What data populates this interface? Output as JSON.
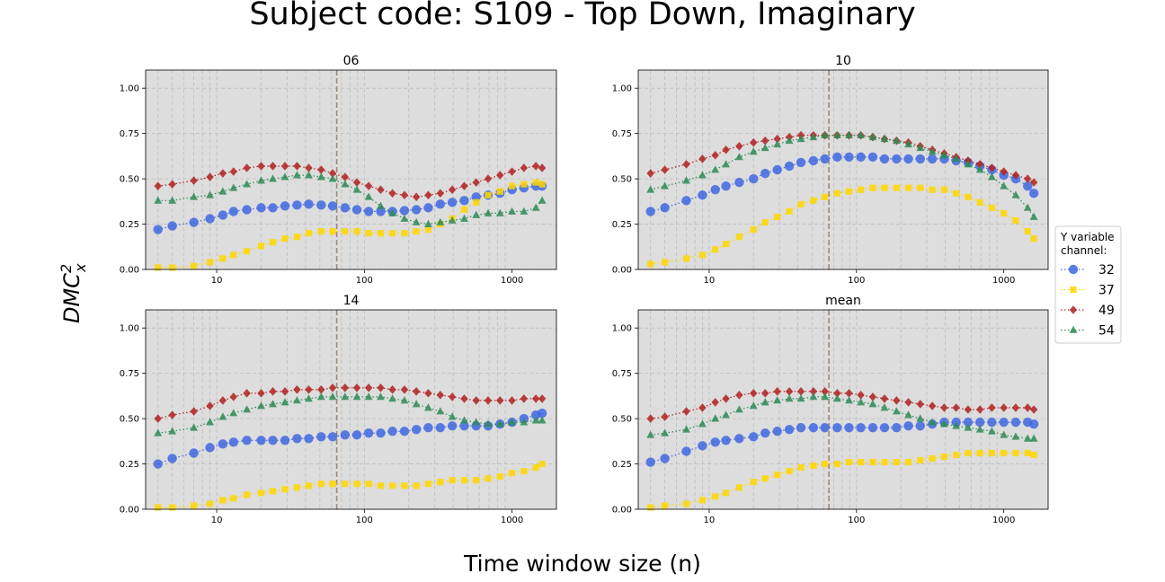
{
  "figure": {
    "title": "Subject code: S109 - Top Down, Imaginary",
    "xlabel": "Time window size (n)",
    "ylabel": "DMC",
    "ylabel_sub": "x",
    "ylabel_sup": "2"
  },
  "legend": {
    "title_line1": "Y variable",
    "title_line2": "channel:",
    "placement": "right, outside",
    "entries": [
      "32",
      "37",
      "49",
      "54"
    ]
  },
  "colors": {
    "32": "#4169e1",
    "37": "#ffd700",
    "49": "#b22222",
    "54": "#2e8b57",
    "panel_bg": "#dddddd",
    "vline": "#a08878"
  },
  "chart_data": [
    {
      "type": "scatter",
      "title": "06",
      "xscale": "log",
      "xlim": [
        3.3,
        2000
      ],
      "ylim": [
        0,
        1.1
      ],
      "xticks": [
        "10",
        "100",
        "1000"
      ],
      "yticks": [
        "0.00",
        "0.25",
        "0.50",
        "0.75",
        "1.00"
      ],
      "grid": true,
      "vline_x": 65,
      "x": [
        4,
        5,
        7,
        9,
        11,
        13,
        16,
        20,
        24,
        29,
        35,
        42,
        51,
        61,
        74,
        89,
        107,
        129,
        155,
        187,
        225,
        271,
        327,
        394,
        475,
        572,
        689,
        830,
        1000,
        1205,
        1452,
        1600
      ],
      "series": [
        {
          "name": "32",
          "marker": "circle",
          "values": [
            0.22,
            0.24,
            0.26,
            0.28,
            0.3,
            0.32,
            0.33,
            0.34,
            0.34,
            0.35,
            0.355,
            0.36,
            0.355,
            0.35,
            0.34,
            0.33,
            0.32,
            0.32,
            0.32,
            0.325,
            0.33,
            0.34,
            0.36,
            0.37,
            0.38,
            0.4,
            0.41,
            0.42,
            0.44,
            0.45,
            0.46,
            0.46
          ]
        },
        {
          "name": "37",
          "marker": "square",
          "values": [
            0.01,
            0.01,
            0.02,
            0.04,
            0.06,
            0.08,
            0.1,
            0.13,
            0.15,
            0.17,
            0.18,
            0.2,
            0.21,
            0.21,
            0.21,
            0.21,
            0.2,
            0.2,
            0.2,
            0.2,
            0.21,
            0.22,
            0.25,
            0.28,
            0.33,
            0.37,
            0.41,
            0.43,
            0.46,
            0.47,
            0.48,
            0.47
          ]
        },
        {
          "name": "49",
          "marker": "diamond",
          "values": [
            0.46,
            0.47,
            0.49,
            0.51,
            0.53,
            0.54,
            0.56,
            0.57,
            0.57,
            0.57,
            0.57,
            0.56,
            0.55,
            0.53,
            0.51,
            0.48,
            0.46,
            0.44,
            0.42,
            0.41,
            0.4,
            0.41,
            0.42,
            0.44,
            0.46,
            0.48,
            0.5,
            0.52,
            0.54,
            0.56,
            0.57,
            0.56
          ]
        },
        {
          "name": "54",
          "marker": "triangle",
          "values": [
            0.38,
            0.38,
            0.4,
            0.41,
            0.43,
            0.45,
            0.47,
            0.49,
            0.5,
            0.51,
            0.52,
            0.52,
            0.51,
            0.5,
            0.47,
            0.44,
            0.4,
            0.35,
            0.31,
            0.28,
            0.26,
            0.25,
            0.26,
            0.27,
            0.28,
            0.3,
            0.31,
            0.31,
            0.32,
            0.32,
            0.34,
            0.38
          ]
        }
      ]
    },
    {
      "type": "scatter",
      "title": "10",
      "xscale": "log",
      "xlim": [
        3.3,
        2000
      ],
      "ylim": [
        0,
        1.1
      ],
      "xticks": [
        "10",
        "100",
        "1000"
      ],
      "yticks": [
        "0.00",
        "0.25",
        "0.50",
        "0.75",
        "1.00"
      ],
      "grid": true,
      "vline_x": 65,
      "x": [
        4,
        5,
        7,
        9,
        11,
        13,
        16,
        20,
        24,
        29,
        35,
        42,
        51,
        61,
        74,
        89,
        107,
        129,
        155,
        187,
        225,
        271,
        327,
        394,
        475,
        572,
        689,
        830,
        1000,
        1205,
        1452,
        1600
      ],
      "series": [
        {
          "name": "32",
          "marker": "circle",
          "values": [
            0.32,
            0.34,
            0.38,
            0.41,
            0.44,
            0.46,
            0.48,
            0.5,
            0.53,
            0.55,
            0.57,
            0.59,
            0.6,
            0.61,
            0.62,
            0.62,
            0.62,
            0.62,
            0.61,
            0.61,
            0.61,
            0.61,
            0.61,
            0.61,
            0.6,
            0.59,
            0.57,
            0.55,
            0.52,
            0.5,
            0.46,
            0.42
          ]
        },
        {
          "name": "37",
          "marker": "square",
          "values": [
            0.03,
            0.04,
            0.06,
            0.08,
            0.11,
            0.14,
            0.18,
            0.22,
            0.26,
            0.29,
            0.32,
            0.36,
            0.38,
            0.4,
            0.42,
            0.43,
            0.44,
            0.45,
            0.45,
            0.45,
            0.45,
            0.45,
            0.44,
            0.44,
            0.42,
            0.4,
            0.37,
            0.34,
            0.31,
            0.27,
            0.21,
            0.17
          ]
        },
        {
          "name": "49",
          "marker": "diamond",
          "values": [
            0.53,
            0.55,
            0.58,
            0.61,
            0.63,
            0.66,
            0.68,
            0.7,
            0.71,
            0.72,
            0.73,
            0.74,
            0.74,
            0.74,
            0.74,
            0.74,
            0.74,
            0.73,
            0.72,
            0.71,
            0.7,
            0.68,
            0.66,
            0.64,
            0.62,
            0.6,
            0.58,
            0.56,
            0.54,
            0.52,
            0.5,
            0.48
          ]
        },
        {
          "name": "54",
          "marker": "triangle",
          "values": [
            0.44,
            0.46,
            0.49,
            0.52,
            0.55,
            0.58,
            0.62,
            0.65,
            0.67,
            0.69,
            0.71,
            0.72,
            0.73,
            0.74,
            0.74,
            0.74,
            0.74,
            0.73,
            0.72,
            0.71,
            0.69,
            0.67,
            0.65,
            0.63,
            0.61,
            0.58,
            0.55,
            0.51,
            0.46,
            0.41,
            0.34,
            0.29
          ]
        }
      ]
    },
    {
      "type": "scatter",
      "title": "14",
      "xscale": "log",
      "xlim": [
        3.3,
        2000
      ],
      "ylim": [
        0,
        1.1
      ],
      "xticks": [
        "10",
        "100",
        "1000"
      ],
      "yticks": [
        "0.00",
        "0.25",
        "0.50",
        "0.75",
        "1.00"
      ],
      "grid": true,
      "vline_x": 65,
      "x": [
        4,
        5,
        7,
        9,
        11,
        13,
        16,
        20,
        24,
        29,
        35,
        42,
        51,
        61,
        74,
        89,
        107,
        129,
        155,
        187,
        225,
        271,
        327,
        394,
        475,
        572,
        689,
        830,
        1000,
        1205,
        1452,
        1600
      ],
      "series": [
        {
          "name": "32",
          "marker": "circle",
          "values": [
            0.25,
            0.28,
            0.31,
            0.34,
            0.36,
            0.37,
            0.38,
            0.38,
            0.38,
            0.38,
            0.39,
            0.39,
            0.4,
            0.4,
            0.41,
            0.41,
            0.42,
            0.42,
            0.43,
            0.43,
            0.44,
            0.45,
            0.45,
            0.46,
            0.46,
            0.46,
            0.46,
            0.47,
            0.48,
            0.5,
            0.52,
            0.53
          ]
        },
        {
          "name": "37",
          "marker": "square",
          "values": [
            0.01,
            0.01,
            0.02,
            0.03,
            0.05,
            0.06,
            0.08,
            0.09,
            0.1,
            0.11,
            0.12,
            0.13,
            0.14,
            0.14,
            0.14,
            0.14,
            0.14,
            0.13,
            0.13,
            0.13,
            0.13,
            0.14,
            0.15,
            0.16,
            0.16,
            0.16,
            0.17,
            0.18,
            0.2,
            0.21,
            0.23,
            0.25
          ]
        },
        {
          "name": "49",
          "marker": "diamond",
          "values": [
            0.5,
            0.52,
            0.54,
            0.57,
            0.6,
            0.62,
            0.64,
            0.64,
            0.65,
            0.65,
            0.66,
            0.66,
            0.66,
            0.67,
            0.67,
            0.67,
            0.67,
            0.67,
            0.66,
            0.66,
            0.65,
            0.64,
            0.63,
            0.62,
            0.61,
            0.6,
            0.6,
            0.6,
            0.6,
            0.61,
            0.61,
            0.61
          ]
        },
        {
          "name": "54",
          "marker": "triangle",
          "values": [
            0.42,
            0.43,
            0.45,
            0.48,
            0.51,
            0.53,
            0.55,
            0.57,
            0.58,
            0.59,
            0.6,
            0.61,
            0.62,
            0.62,
            0.62,
            0.62,
            0.62,
            0.62,
            0.61,
            0.6,
            0.58,
            0.56,
            0.54,
            0.51,
            0.49,
            0.48,
            0.47,
            0.47,
            0.48,
            0.48,
            0.49,
            0.49
          ]
        }
      ]
    },
    {
      "type": "scatter",
      "title": "mean",
      "xscale": "log",
      "xlim": [
        3.3,
        2000
      ],
      "ylim": [
        0,
        1.1
      ],
      "xticks": [
        "10",
        "100",
        "1000"
      ],
      "yticks": [
        "0.00",
        "0.25",
        "0.50",
        "0.75",
        "1.00"
      ],
      "grid": true,
      "vline_x": 65,
      "x": [
        4,
        5,
        7,
        9,
        11,
        13,
        16,
        20,
        24,
        29,
        35,
        42,
        51,
        61,
        74,
        89,
        107,
        129,
        155,
        187,
        225,
        271,
        327,
        394,
        475,
        572,
        689,
        830,
        1000,
        1205,
        1452,
        1600
      ],
      "series": [
        {
          "name": "32",
          "marker": "circle",
          "values": [
            0.26,
            0.28,
            0.32,
            0.35,
            0.37,
            0.38,
            0.39,
            0.4,
            0.42,
            0.43,
            0.44,
            0.45,
            0.45,
            0.45,
            0.45,
            0.45,
            0.45,
            0.45,
            0.45,
            0.45,
            0.46,
            0.46,
            0.47,
            0.48,
            0.48,
            0.48,
            0.48,
            0.48,
            0.48,
            0.48,
            0.48,
            0.47
          ]
        },
        {
          "name": "37",
          "marker": "square",
          "values": [
            0.01,
            0.02,
            0.03,
            0.05,
            0.07,
            0.09,
            0.12,
            0.15,
            0.17,
            0.19,
            0.21,
            0.23,
            0.24,
            0.25,
            0.25,
            0.26,
            0.26,
            0.26,
            0.26,
            0.26,
            0.26,
            0.27,
            0.28,
            0.29,
            0.3,
            0.31,
            0.31,
            0.31,
            0.31,
            0.31,
            0.31,
            0.3
          ]
        },
        {
          "name": "49",
          "marker": "diamond",
          "values": [
            0.5,
            0.51,
            0.54,
            0.56,
            0.59,
            0.61,
            0.63,
            0.64,
            0.64,
            0.65,
            0.65,
            0.65,
            0.65,
            0.65,
            0.64,
            0.64,
            0.63,
            0.62,
            0.61,
            0.6,
            0.59,
            0.58,
            0.57,
            0.56,
            0.56,
            0.55,
            0.55,
            0.56,
            0.56,
            0.56,
            0.56,
            0.55
          ]
        },
        {
          "name": "54",
          "marker": "triangle",
          "values": [
            0.41,
            0.42,
            0.44,
            0.47,
            0.5,
            0.52,
            0.55,
            0.57,
            0.59,
            0.6,
            0.61,
            0.61,
            0.62,
            0.62,
            0.61,
            0.6,
            0.59,
            0.58,
            0.56,
            0.54,
            0.52,
            0.5,
            0.48,
            0.47,
            0.46,
            0.45,
            0.44,
            0.43,
            0.41,
            0.4,
            0.39,
            0.39
          ]
        }
      ]
    }
  ]
}
